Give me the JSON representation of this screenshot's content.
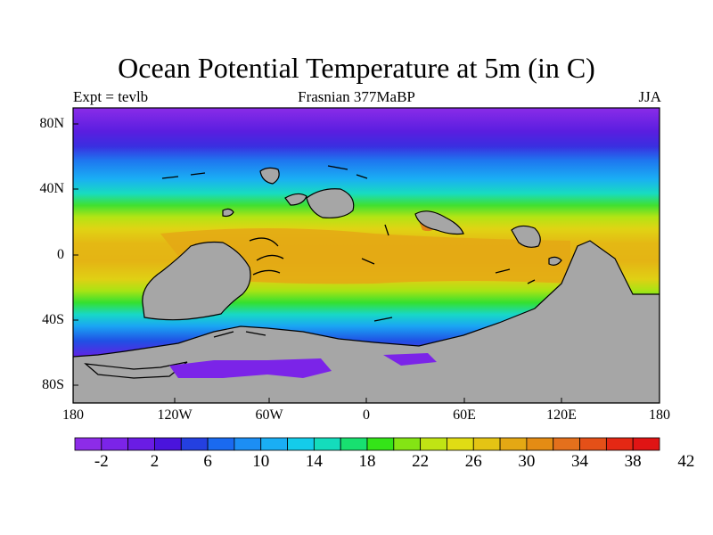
{
  "title": "Ocean Potential Temperature at 5m (in C)",
  "subtitle_left": "Expt = tevlb",
  "subtitle_center": "Frasnian 377MaBP",
  "subtitle_right": "JJA",
  "map": {
    "projection": "cylindrical-equidistant",
    "lon_range": [
      -180,
      180
    ],
    "lat_range": [
      -90,
      90
    ],
    "x_ticks": [
      "180",
      "120W",
      "60W",
      "0",
      "60E",
      "120E",
      "180"
    ],
    "y_ticks": [
      "80N",
      "40N",
      "0",
      "40S",
      "80S"
    ],
    "land_color": "#a6a6a6",
    "coastline_color": "#000000"
  },
  "colorbar": {
    "levels": [
      "-2",
      "2",
      "6",
      "10",
      "14",
      "18",
      "22",
      "26",
      "30",
      "34",
      "38",
      "42"
    ],
    "colors": [
      "#8d2ce8",
      "#7b24e8",
      "#6a1ce4",
      "#4a14dc",
      "#2440e0",
      "#1a6af0",
      "#1c8ef4",
      "#1aaef4",
      "#14ccea",
      "#14dcbc",
      "#18e070",
      "#34e418",
      "#84e414",
      "#c0e414",
      "#e0dc14",
      "#e4c414",
      "#e4a814",
      "#e48c14",
      "#e4701c",
      "#e45018",
      "#e42814",
      "#e01414"
    ]
  }
}
